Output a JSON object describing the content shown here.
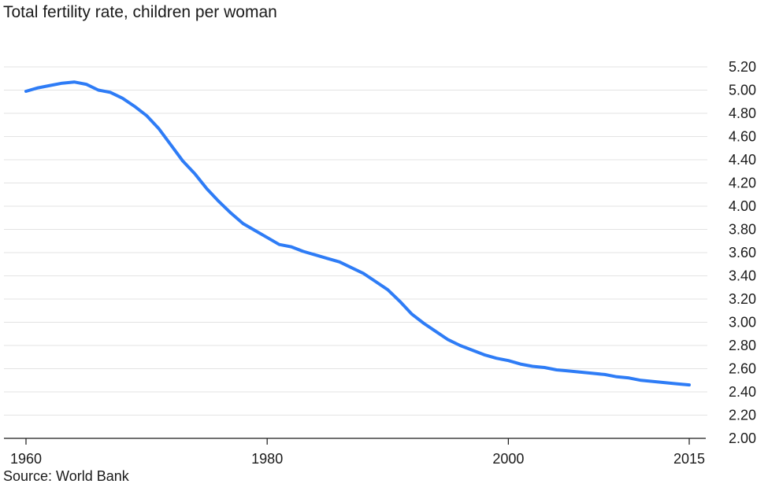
{
  "chart_data": {
    "type": "line",
    "title": "Total fertility rate, children per woman",
    "source": "Source: World Bank",
    "xlabel": "",
    "ylabel": "",
    "xlim": [
      1960,
      2015
    ],
    "ylim": [
      2.0,
      5.2
    ],
    "x_ticks": [
      1960,
      1980,
      2000,
      2015
    ],
    "y_ticks": [
      "2.00",
      "2.20",
      "2.40",
      "2.60",
      "2.80",
      "3.00",
      "3.20",
      "3.40",
      "3.60",
      "3.80",
      "4.00",
      "4.20",
      "4.40",
      "4.60",
      "4.80",
      "5.00",
      "5.20"
    ],
    "y_tick_values": [
      2.0,
      2.2,
      2.4,
      2.6,
      2.8,
      3.0,
      3.2,
      3.4,
      3.6,
      3.8,
      4.0,
      4.2,
      4.4,
      4.6,
      4.8,
      5.0,
      5.2
    ],
    "grid": true,
    "legend": "none",
    "line_color": "#2e7cf6",
    "series": [
      {
        "x": [
          1960,
          1961,
          1962,
          1963,
          1964,
          1965,
          1966,
          1967,
          1968,
          1969,
          1970,
          1971,
          1972,
          1973,
          1974,
          1975,
          1976,
          1977,
          1978,
          1979,
          1980,
          1981,
          1982,
          1983,
          1984,
          1985,
          1986,
          1987,
          1988,
          1989,
          1990,
          1991,
          1992,
          1993,
          1994,
          1995,
          1996,
          1997,
          1998,
          1999,
          2000,
          2001,
          2002,
          2003,
          2004,
          2005,
          2006,
          2007,
          2008,
          2009,
          2010,
          2011,
          2012,
          2013,
          2014,
          2015
        ],
        "values": [
          4.99,
          5.02,
          5.04,
          5.06,
          5.07,
          5.05,
          5.0,
          4.98,
          4.93,
          4.86,
          4.78,
          4.67,
          4.53,
          4.39,
          4.28,
          4.15,
          4.04,
          3.94,
          3.85,
          3.79,
          3.73,
          3.67,
          3.65,
          3.61,
          3.58,
          3.55,
          3.52,
          3.47,
          3.42,
          3.35,
          3.28,
          3.18,
          3.07,
          2.99,
          2.92,
          2.85,
          2.8,
          2.76,
          2.72,
          2.69,
          2.67,
          2.64,
          2.62,
          2.61,
          2.59,
          2.58,
          2.57,
          2.56,
          2.55,
          2.53,
          2.52,
          2.5,
          2.49,
          2.48,
          2.47,
          2.46
        ]
      }
    ]
  }
}
